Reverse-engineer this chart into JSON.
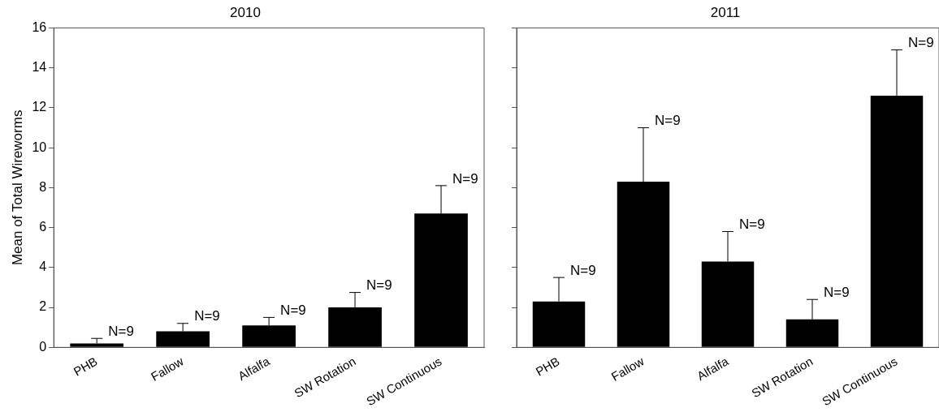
{
  "chart_data": [
    {
      "type": "bar",
      "title": "2010",
      "ylabel": "Mean of Total Wireworms",
      "categories": [
        "PHB",
        "Fallow",
        "Alfalfa",
        "SW Rotation",
        "SW Continuous"
      ],
      "values": [
        0.2,
        0.8,
        1.1,
        2.0,
        6.7
      ],
      "color": "#000000",
      "errors": [
        [
          0.2,
          0.45
        ],
        [
          0.8,
          1.2
        ],
        [
          1.1,
          1.5
        ],
        [
          2.0,
          2.75
        ],
        [
          6.7,
          8.1
        ]
      ],
      "ylim": [
        0,
        16
      ],
      "yticks": [
        0,
        2,
        4,
        6,
        8,
        10,
        12,
        14,
        16
      ],
      "grid": false,
      "legend": false,
      "annotations": [
        {
          "text": "N=9",
          "x": "PHB",
          "y": 0.45
        },
        {
          "text": "N=9",
          "x": "Fallow",
          "y": 1.2
        },
        {
          "text": "N=9",
          "x": "Alfalfa",
          "y": 1.5
        },
        {
          "text": "N=9",
          "x": "SW Rotation",
          "y": 2.75
        },
        {
          "text": "N=9",
          "x": "SW Continuous",
          "y": 8.1
        }
      ]
    },
    {
      "type": "bar",
      "title": "2011",
      "categories": [
        "PHB",
        "Fallow",
        "Alfalfa",
        "SW Rotation",
        "SW Continuous"
      ],
      "values": [
        2.3,
        8.3,
        4.3,
        1.4,
        12.6
      ],
      "color": "#000000",
      "errors": [
        [
          2.3,
          3.5
        ],
        [
          8.3,
          11.0
        ],
        [
          4.3,
          5.8
        ],
        [
          1.4,
          2.4
        ],
        [
          12.6,
          14.9
        ]
      ],
      "ylim": [
        0,
        16
      ],
      "yticks": [
        0,
        2,
        4,
        6,
        8,
        10,
        12,
        14,
        16
      ],
      "grid": false,
      "legend": false,
      "tick_labels": "x",
      "annotations": [
        {
          "text": "N=9",
          "x": "PHB",
          "y": 3.5
        },
        {
          "text": "N=9",
          "x": "Fallow",
          "y": 11.0
        },
        {
          "text": "N=9",
          "x": "Alfalfa",
          "y": 5.8
        },
        {
          "text": "N=9",
          "x": "SW Rotation",
          "y": 2.4
        },
        {
          "text": "N=9",
          "x": "SW Continuous",
          "y": 14.9
        }
      ]
    }
  ]
}
